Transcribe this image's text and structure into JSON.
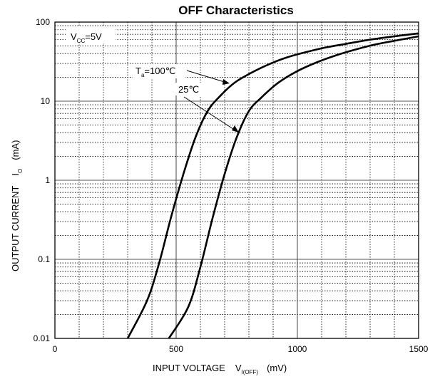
{
  "chart_data": {
    "type": "line",
    "title": "OFF Characteristics",
    "xlabel": {
      "prefix": "INPUT VOLTAGE",
      "symbol": "V",
      "subscript": "I(OFF)",
      "unit": "(mV)"
    },
    "ylabel": {
      "prefix": "OUTPUT CURRENT",
      "symbol": "I",
      "subscript": "O",
      "unit": "(mA)"
    },
    "xlim": [
      0,
      1500
    ],
    "ylim": [
      0.01,
      100
    ],
    "yscale": "log",
    "grid": true,
    "x_ticks": [
      "0",
      "500",
      "1000",
      "1500"
    ],
    "y_ticks": [
      "0.01",
      "0.1",
      "1",
      "10",
      "100"
    ],
    "condition": {
      "symbol": "V",
      "subscript": "CC",
      "value": "=5V"
    },
    "series": [
      {
        "name_symbol": "T",
        "name_subscript": "a",
        "name_value": "=100℃",
        "x": [
          300,
          380,
          430,
          480,
          530,
          580,
          630,
          680,
          740,
          800,
          880,
          960,
          1040,
          1120,
          1200,
          1300,
          1400,
          1500
        ],
        "y": [
          0.01,
          0.03,
          0.09,
          0.35,
          1.2,
          3.5,
          7.5,
          11.5,
          17,
          22,
          29,
          36,
          42,
          48,
          53,
          60,
          66,
          72
        ]
      },
      {
        "name_value": "25℃",
        "x": [
          470,
          550,
          600,
          650,
          700,
          750,
          800,
          850,
          920,
          1000,
          1080,
          1160,
          1240,
          1320,
          1400,
          1500
        ],
        "y": [
          0.01,
          0.025,
          0.08,
          0.33,
          1.2,
          3.5,
          7.5,
          11,
          17,
          24,
          31,
          38,
          45,
          52,
          58,
          66
        ]
      }
    ]
  }
}
